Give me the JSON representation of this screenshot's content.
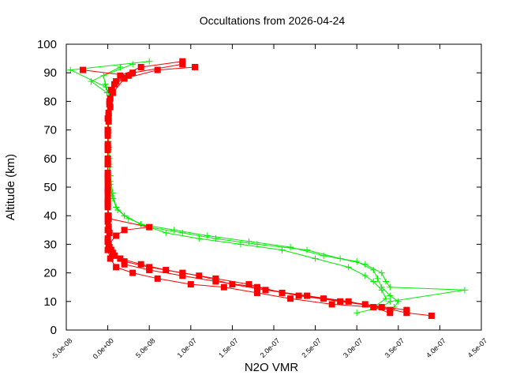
{
  "chart_data": {
    "type": "line",
    "title": "Occultations from 2026-04-24",
    "xlabel": "N2O VMR",
    "ylabel": "Altitude (km)",
    "xlim": [
      -5e-08,
      4.5e-07
    ],
    "ylim": [
      0,
      100
    ],
    "x_ticks": [
      "-5.0e-08",
      "0.0e+00",
      "5.0e-08",
      "1.0e-07",
      "1.5e-07",
      "2.0e-07",
      "2.5e-07",
      "3.0e-07",
      "3.5e-07",
      "4.0e-07",
      "4.5e-07"
    ],
    "y_ticks": [
      "0",
      "10",
      "20",
      "30",
      "40",
      "50",
      "60",
      "70",
      "80",
      "90",
      "100"
    ],
    "grid": false,
    "legend": "none",
    "series": [
      {
        "color": "#00ee00",
        "marker": "plus",
        "profiles": [
          {
            "points": [
              [
                3.4e-07,
                7
              ],
              [
                3.45e-07,
                8
              ],
              [
                3.5e-07,
                10
              ],
              [
                3.4e-07,
                12
              ],
              [
                3.3e-07,
                15
              ],
              [
                3.25e-07,
                18
              ],
              [
                3.2e-07,
                21
              ],
              [
                3e-07,
                24
              ],
              [
                2.6e-07,
                26
              ],
              [
                2.2e-07,
                29
              ],
              [
                1.7e-07,
                31
              ],
              [
                1.2e-07,
                33
              ],
              [
                8e-08,
                35
              ],
              [
                4e-08,
                37
              ],
              [
                2e-08,
                40
              ],
              [
                1e-08,
                43
              ],
              [
                5e-09,
                47
              ],
              [
                3e-09,
                52
              ],
              [
                2e-09,
                58
              ],
              [
                1.5e-09,
                64
              ],
              [
                1e-09,
                70
              ],
              [
                1e-09,
                76
              ],
              [
                2e-09,
                82
              ],
              [
                -3e-09,
                86
              ],
              [
                -5e-09,
                89
              ],
              [
                3e-08,
                93
              ]
            ]
          },
          {
            "points": [
              [
                3e-07,
                6
              ],
              [
                3.3e-07,
                8
              ],
              [
                3.4e-07,
                10
              ],
              [
                4.3e-07,
                14
              ],
              [
                3.4e-07,
                15
              ],
              [
                3.35e-07,
                17
              ],
              [
                3.3e-07,
                20
              ],
              [
                3.1e-07,
                23
              ],
              [
                2.8e-07,
                25
              ],
              [
                2.4e-07,
                28
              ],
              [
                1.8e-07,
                30
              ],
              [
                1.3e-07,
                32
              ],
              [
                9e-08,
                34
              ],
              [
                5e-08,
                36
              ],
              [
                2.5e-08,
                39
              ],
              [
                1.2e-08,
                42
              ],
              [
                6e-09,
                46
              ],
              [
                3e-09,
                51
              ],
              [
                2e-09,
                57
              ],
              [
                1e-09,
                63
              ],
              [
                1e-09,
                69
              ],
              [
                1.5e-09,
                75
              ],
              [
                3e-09,
                81
              ],
              [
                -2e-09,
                85
              ],
              [
                -4.5e-08,
                91
              ],
              [
                5e-08,
                94
              ]
            ]
          },
          {
            "points": [
              [
                3.2e-07,
                8
              ],
              [
                3.35e-07,
                11
              ],
              [
                3.3e-07,
                14
              ],
              [
                3.2e-07,
                17
              ],
              [
                3.1e-07,
                19
              ],
              [
                2.9e-07,
                22
              ],
              [
                2.5e-07,
                25
              ],
              [
                2.1e-07,
                28
              ],
              [
                1.6e-07,
                30
              ],
              [
                1.1e-07,
                32
              ],
              [
                7e-08,
                34
              ],
              [
                4e-08,
                37
              ],
              [
                2e-08,
                40
              ],
              [
                1e-08,
                43
              ],
              [
                6e-09,
                48
              ],
              [
                3e-09,
                54
              ],
              [
                2e-09,
                60
              ],
              [
                1e-09,
                66
              ],
              [
                1e-09,
                72
              ],
              [
                2e-09,
                78
              ],
              [
                -1e-09,
                83
              ],
              [
                -2e-08,
                87
              ],
              [
                1.5e-08,
                92
              ]
            ]
          }
        ]
      },
      {
        "color": "#ff0000",
        "marker": "square",
        "profiles": [
          {
            "points": [
              [
                3.9e-07,
                5
              ],
              [
                3.6e-07,
                6
              ],
              [
                3.3e-07,
                8
              ],
              [
                2.8e-07,
                10
              ],
              [
                2.3e-07,
                12
              ],
              [
                1.8e-07,
                15
              ],
              [
                1.3e-07,
                17
              ],
              [
                9e-08,
                19
              ],
              [
                5e-08,
                21
              ],
              [
                2e-08,
                23
              ],
              [
                8e-09,
                26
              ],
              [
                2e-09,
                29
              ],
              [
                0,
                32
              ],
              [
                1e-09,
                36
              ],
              [
                1e-09,
                40
              ],
              [
                0,
                45
              ],
              [
                0,
                50
              ],
              [
                0,
                55
              ],
              [
                0,
                60
              ],
              [
                0,
                65
              ],
              [
                0,
                70
              ],
              [
                1e-09,
                75
              ],
              [
                2e-09,
                80
              ],
              [
                5e-09,
                84
              ],
              [
                1e-08,
                87
              ],
              [
                3e-08,
                90
              ],
              [
                9e-08,
                93
              ]
            ]
          },
          {
            "points": [
              [
                3.4e-07,
                6
              ],
              [
                3.2e-07,
                8
              ],
              [
                2.7e-07,
                9
              ],
              [
                2.2e-07,
                11
              ],
              [
                1.8e-07,
                13
              ],
              [
                1.4e-07,
                15
              ],
              [
                1e-07,
                16
              ],
              [
                6e-08,
                18
              ],
              [
                3e-08,
                20
              ],
              [
                1e-08,
                22
              ],
              [
                3e-09,
                25
              ],
              [
                0,
                28
              ],
              [
                0,
                31
              ],
              [
                2e-09,
                34
              ],
              [
                0,
                38
              ],
              [
                0,
                43
              ],
              [
                0,
                48
              ],
              [
                0,
                53
              ],
              [
                0,
                58
              ],
              [
                0,
                63
              ],
              [
                0,
                68
              ],
              [
                1e-09,
                73
              ],
              [
                3e-09,
                78
              ],
              [
                6e-09,
                83
              ],
              [
                2e-08,
                88
              ],
              [
                6e-08,
                91
              ],
              [
                1.05e-07,
                92
              ]
            ]
          },
          {
            "points": [
              [
                3.6e-07,
                7
              ],
              [
                3.1e-07,
                9
              ],
              [
                2.6e-07,
                11
              ],
              [
                2.1e-07,
                13
              ],
              [
                1.7e-07,
                16
              ],
              [
                1.3e-07,
                18
              ],
              [
                9e-08,
                20
              ],
              [
                5e-08,
                22
              ],
              [
                2e-08,
                24
              ],
              [
                6e-09,
                27
              ],
              [
                1e-09,
                30
              ],
              [
                1e-08,
                33
              ],
              [
                2e-08,
                35
              ],
              [
                5e-08,
                36
              ],
              [
                1e-09,
                39
              ],
              [
                0,
                44
              ],
              [
                0,
                49
              ],
              [
                0,
                54
              ],
              [
                0,
                59
              ],
              [
                0,
                64
              ],
              [
                0,
                69
              ],
              [
                0,
                74
              ],
              [
                2e-09,
                79
              ],
              [
                4e-09,
                84
              ],
              [
                1.5e-08,
                89
              ],
              [
                4e-08,
                92
              ],
              [
                9e-08,
                94
              ]
            ]
          },
          {
            "points": [
              [
                3.4e-07,
                7
              ],
              [
                2.9e-07,
                10
              ],
              [
                2.4e-07,
                12
              ],
              [
                1.9e-07,
                14
              ],
              [
                1.5e-07,
                16
              ],
              [
                1.1e-07,
                19
              ],
              [
                7e-08,
                21
              ],
              [
                4e-08,
                23
              ],
              [
                1.5e-08,
                25
              ],
              [
                4e-09,
                28
              ],
              [
                0,
                31
              ],
              [
                0,
                35
              ],
              [
                0,
                40
              ],
              [
                0,
                46
              ],
              [
                0,
                52
              ],
              [
                0,
                58
              ],
              [
                0,
                64
              ],
              [
                0,
                70
              ],
              [
                1e-09,
                76
              ],
              [
                3e-09,
                81
              ],
              [
                8e-09,
                86
              ],
              [
                2.5e-08,
                89
              ],
              [
                -3e-08,
                91
              ]
            ]
          }
        ]
      }
    ]
  }
}
